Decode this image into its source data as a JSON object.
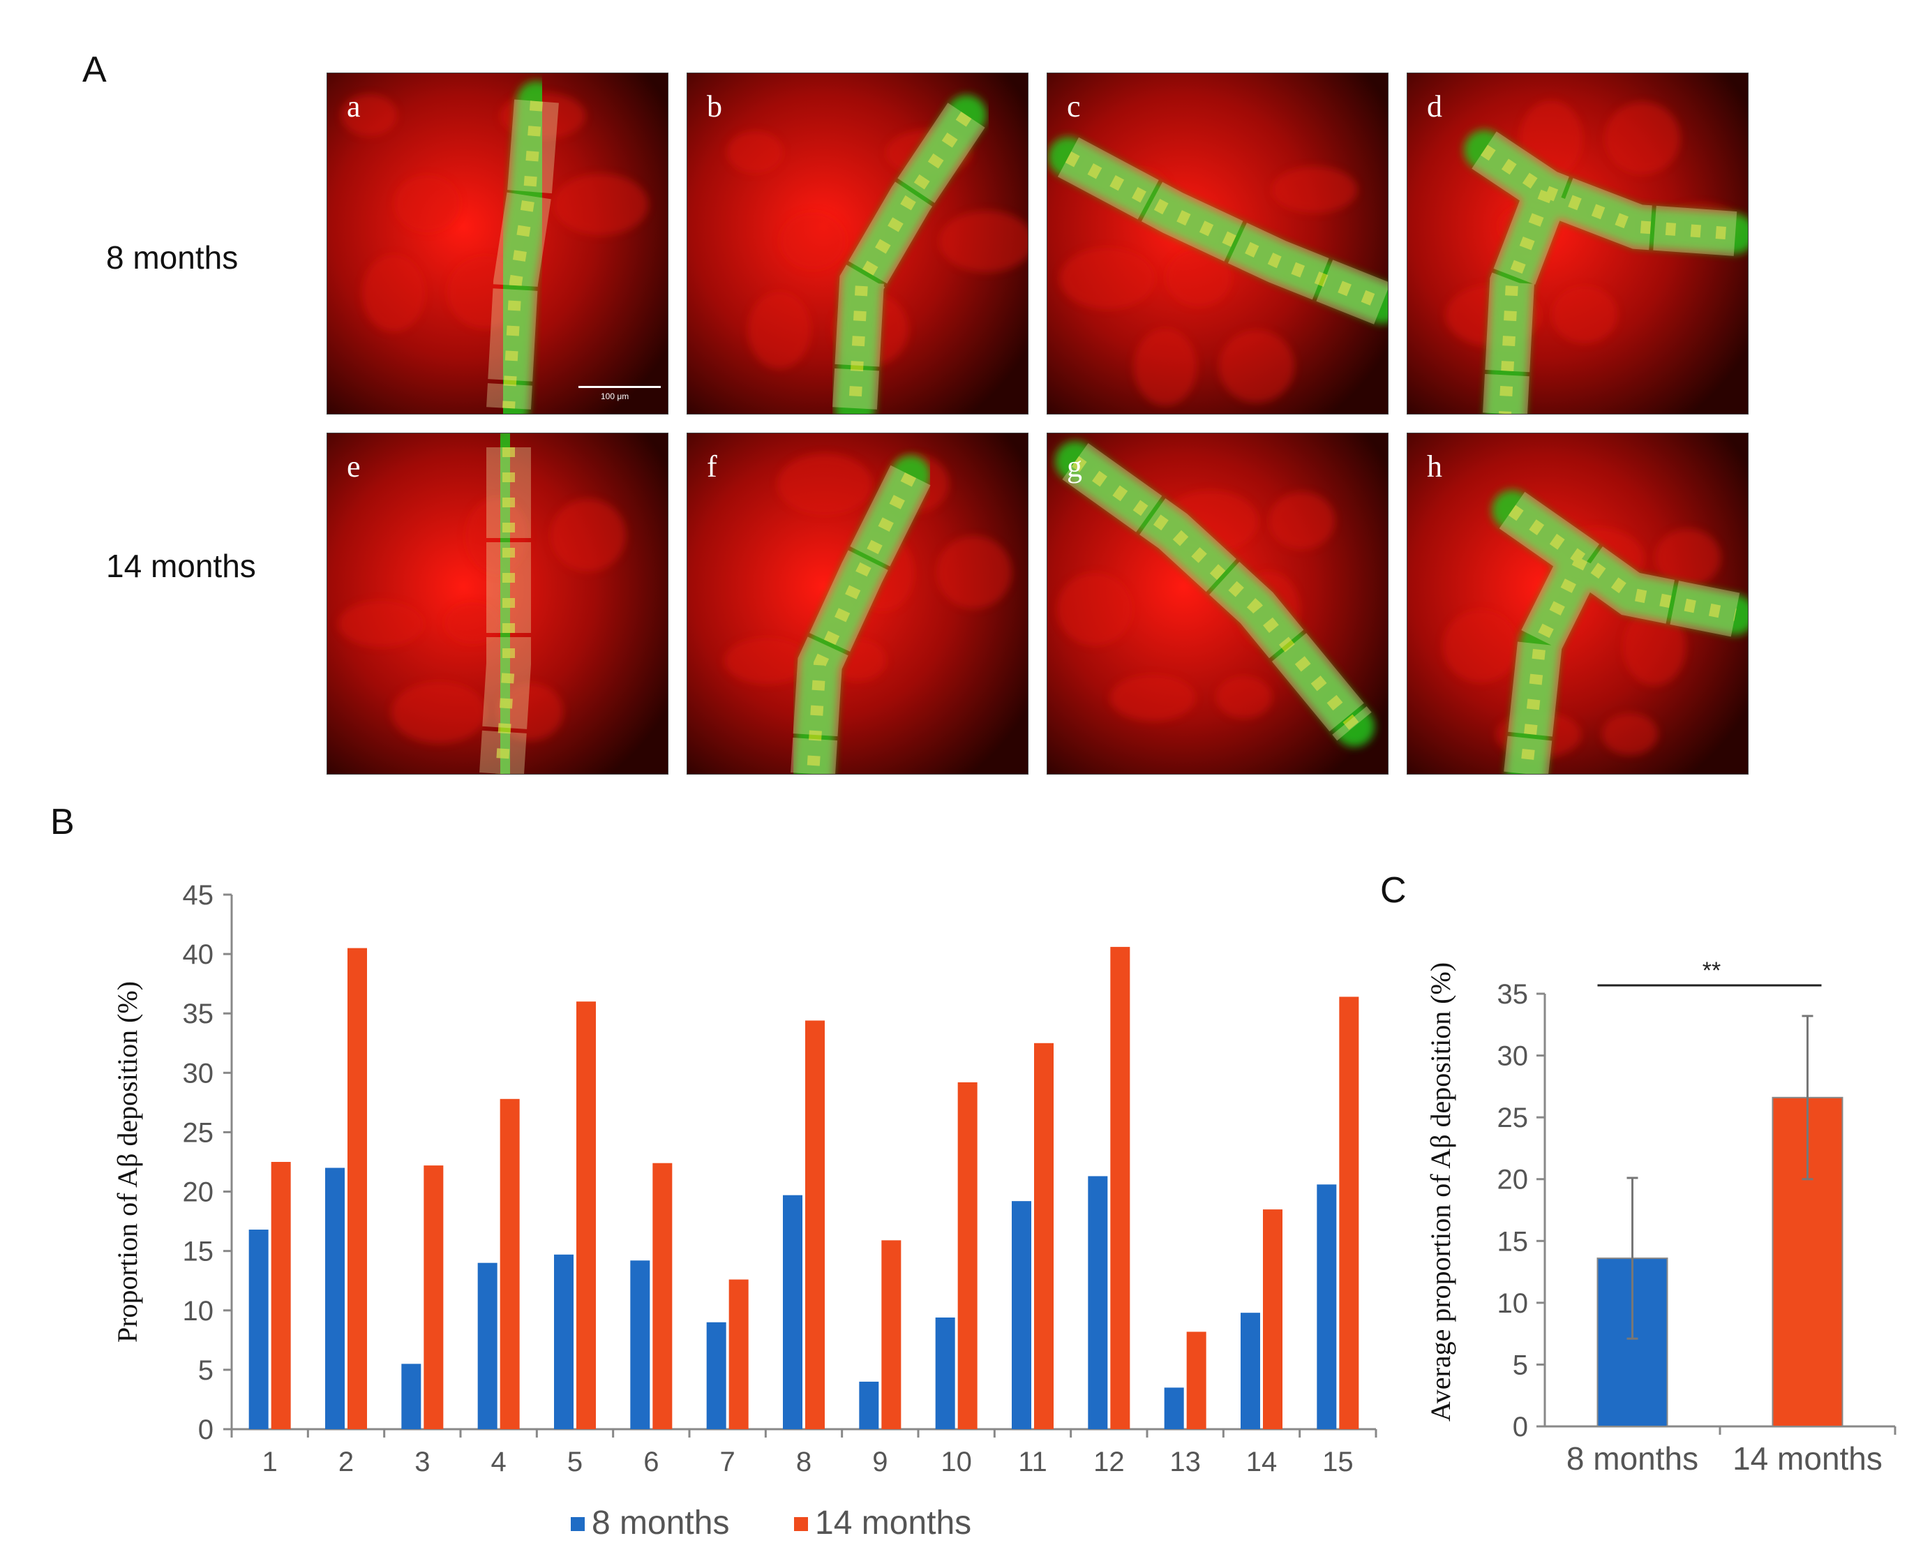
{
  "panel_A": {
    "label": "A",
    "rows": [
      {
        "label": "8 months",
        "tiles": [
          "a",
          "b",
          "c",
          "d"
        ]
      },
      {
        "label": "14 months",
        "tiles": [
          "e",
          "f",
          "g",
          "h"
        ]
      }
    ],
    "scale_bar": "100 μm"
  },
  "panel_B": {
    "label": "B"
  },
  "panel_C": {
    "label": "C"
  },
  "colors": {
    "series_8": "#1f6cc5",
    "series_14": "#ef4b1c",
    "axis": "#888888",
    "tick_text": "#555555"
  },
  "chart_data": [
    {
      "type": "bar",
      "title": "",
      "xlabel": "",
      "ylabel": "Proportion of Aβ deposition (%)",
      "ylim": [
        0,
        45
      ],
      "yticks": [
        "0",
        "5",
        "10",
        "15",
        "20",
        "25",
        "30",
        "35",
        "40",
        "45"
      ],
      "categories": [
        "1",
        "2",
        "3",
        "4",
        "5",
        "6",
        "7",
        "8",
        "9",
        "10",
        "11",
        "12",
        "13",
        "14",
        "15"
      ],
      "series": [
        {
          "name": "8 months",
          "values": [
            16.8,
            22.0,
            5.5,
            14.0,
            14.7,
            14.2,
            9.0,
            19.7,
            4.0,
            9.4,
            19.2,
            21.3,
            3.5,
            9.8,
            20.6
          ]
        },
        {
          "name": "14 months",
          "values": [
            22.5,
            40.5,
            22.2,
            27.8,
            36.0,
            22.4,
            12.6,
            34.4,
            15.9,
            29.2,
            32.5,
            40.6,
            8.2,
            18.5,
            36.4
          ]
        }
      ],
      "legend": "bottom",
      "grid": false
    },
    {
      "type": "bar",
      "title": "",
      "xlabel": "",
      "ylabel": "Average proportion of Aβ deposition (%)",
      "ylim": [
        0,
        35
      ],
      "yticks": [
        "0",
        "5",
        "10",
        "15",
        "20",
        "25",
        "30",
        "35"
      ],
      "categories": [
        "8 months",
        "14 months"
      ],
      "values": [
        13.6,
        26.6
      ],
      "error": [
        6.5,
        6.6
      ],
      "significance": "**",
      "grid": false
    }
  ]
}
